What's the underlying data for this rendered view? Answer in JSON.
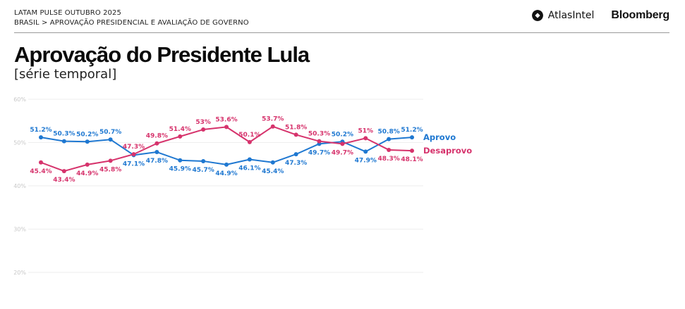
{
  "header": {
    "line1": "LATAM PULSE OUTUBRO 2025",
    "line2": "BRASIL > APROVAÇÃO PRESIDENCIAL E AVALIAÇÃO DE GOVERNO",
    "logo_atlas": "AtlasIntel",
    "logo_bloomberg": "Bloomberg"
  },
  "title": "Aprovação do Presidente Lula",
  "subtitle": "[série temporal]",
  "colors": {
    "aprovo": "#1f78d1",
    "desaprovo": "#d6336c",
    "grid": "#eeeeee",
    "ticklabel": "#c8c8c8"
  },
  "chart_data": {
    "type": "line",
    "title": "Aprovação do Presidente Lula",
    "subtitle": "[série temporal]",
    "xlabel": "",
    "ylabel": "",
    "ylim": [
      20,
      60
    ],
    "yticks": [
      "20%",
      "30%",
      "40%",
      "50%",
      "60%"
    ],
    "ytick_values": [
      20,
      30,
      40,
      50,
      60
    ],
    "grid": true,
    "legend": "right end of lines",
    "x": [
      1,
      2,
      3,
      4,
      5,
      6,
      7,
      8,
      9,
      10,
      11,
      12,
      13,
      14,
      15,
      16,
      17
    ],
    "series": [
      {
        "name": "Aprovo",
        "values": [
          51.2,
          50.3,
          50.2,
          50.7,
          47.1,
          47.8,
          45.9,
          45.7,
          44.9,
          46.1,
          45.4,
          47.3,
          49.7,
          50.2,
          47.9,
          50.8,
          51.2
        ],
        "labels": [
          "51.2%",
          "50.3%",
          "50.2%",
          "50.7%",
          "47.1%",
          "47.8%",
          "45.9%",
          "45.7%",
          "44.9%",
          "46.1%",
          "45.4%",
          "47.3%",
          "49.7%",
          "50.2%",
          "47.9%",
          "50.8%",
          "51.2%"
        ],
        "label_pos": [
          "above",
          "above",
          "above",
          "above",
          "below",
          "below",
          "below",
          "below",
          "below",
          "below",
          "below",
          "below",
          "below",
          "above",
          "below",
          "above",
          "above"
        ]
      },
      {
        "name": "Desaprovo",
        "values": [
          45.4,
          43.4,
          44.9,
          45.8,
          47.3,
          49.8,
          51.4,
          53.0,
          53.6,
          50.1,
          53.7,
          51.8,
          50.3,
          49.7,
          51.0,
          48.3,
          48.1
        ],
        "labels": [
          "45.4%",
          "43.4%",
          "44.9%",
          "45.8%",
          "47.3%",
          "49.8%",
          "51.4%",
          "53%",
          "53.6%",
          "50.1%",
          "53.7%",
          "51.8%",
          "50.3%",
          "49.7%",
          "51%",
          "48.3%",
          "48.1%"
        ],
        "label_pos": [
          "below",
          "below",
          "below",
          "below",
          "above",
          "above",
          "above",
          "above",
          "above",
          "above",
          "above",
          "above",
          "above",
          "below",
          "above",
          "below",
          "below"
        ]
      }
    ]
  }
}
